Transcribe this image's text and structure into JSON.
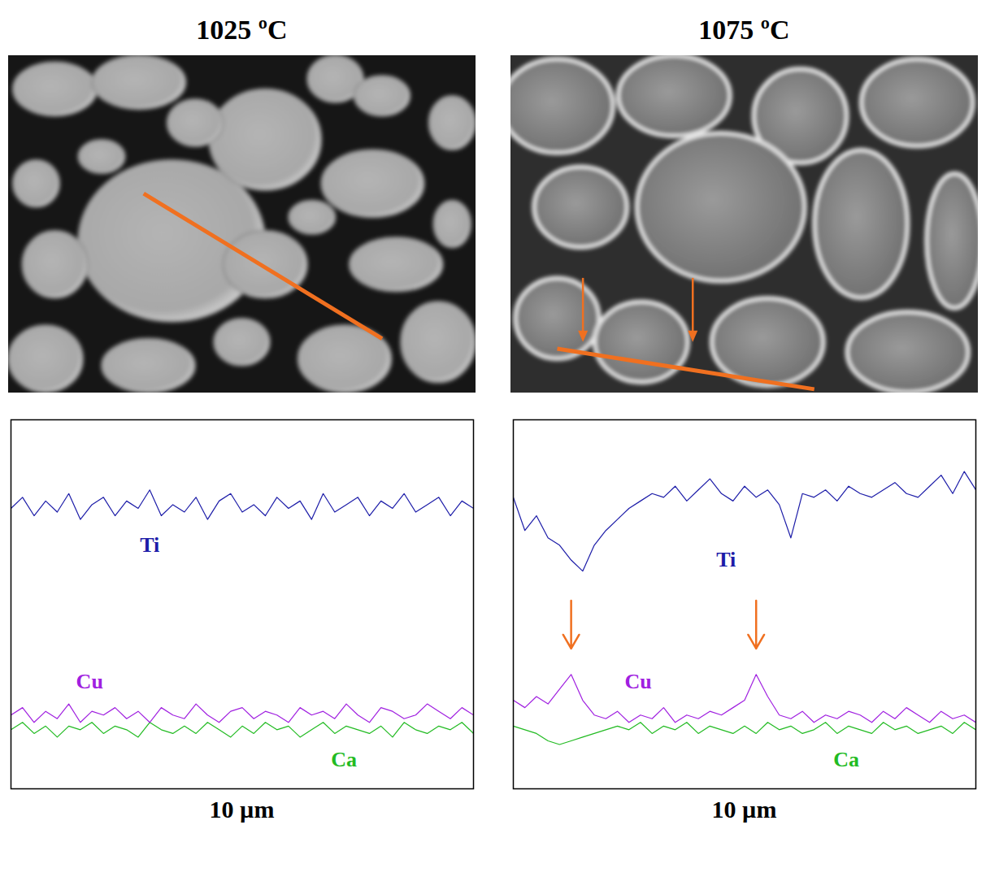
{
  "chart_data": [
    {
      "type": "line",
      "title": "1025 ºC",
      "x_label": "10 µm",
      "tick_labels": false,
      "xlim": [
        0,
        100
      ],
      "ylim": [
        0,
        100
      ],
      "xticks": [],
      "yticks": [],
      "x": [
        0,
        2.5,
        5,
        7.5,
        10,
        12.5,
        15,
        17.5,
        20,
        22.5,
        25,
        27.5,
        30,
        32.5,
        35,
        37.5,
        40,
        42.5,
        45,
        47.5,
        50,
        52.5,
        55,
        57.5,
        60,
        62.5,
        65,
        67.5,
        70,
        72.5,
        75,
        77.5,
        80,
        82.5,
        85,
        87.5,
        90,
        92.5,
        95,
        97.5,
        100
      ],
      "series": [
        {
          "name": "Ti",
          "color": "#1c1ca8",
          "values": [
            76,
            79,
            74,
            78,
            75,
            80,
            73,
            77,
            79,
            74,
            78,
            76,
            81,
            74,
            77,
            75,
            79,
            73,
            78,
            80,
            75,
            77,
            74,
            79,
            76,
            78,
            73,
            80,
            75,
            77,
            79,
            74,
            78,
            76,
            80,
            75,
            77,
            79,
            74,
            78,
            76
          ]
        },
        {
          "name": "Cu",
          "color": "#a020e0",
          "values": [
            20,
            22,
            18,
            21,
            19,
            23,
            18,
            21,
            20,
            22,
            19,
            21,
            18,
            22,
            20,
            19,
            23,
            20,
            18,
            21,
            22,
            19,
            21,
            20,
            18,
            22,
            20,
            21,
            19,
            23,
            20,
            18,
            22,
            21,
            19,
            20,
            23,
            21,
            19,
            22,
            20
          ]
        },
        {
          "name": "Ca",
          "color": "#22bb22",
          "values": [
            16,
            18,
            15,
            17,
            14,
            17,
            16,
            18,
            15,
            17,
            16,
            14,
            18,
            16,
            15,
            17,
            15,
            18,
            16,
            14,
            17,
            15,
            18,
            16,
            17,
            14,
            16,
            18,
            15,
            17,
            16,
            15,
            17,
            14,
            18,
            16,
            15,
            17,
            16,
            18,
            15
          ]
        }
      ]
    },
    {
      "type": "line",
      "title": "1075 ºC",
      "x_label": "10 µm",
      "tick_labels": false,
      "xlim": [
        0,
        100
      ],
      "ylim": [
        0,
        100
      ],
      "xticks": [],
      "yticks": [],
      "x": [
        0,
        2.5,
        5,
        7.5,
        10,
        12.5,
        15,
        17.5,
        20,
        22.5,
        25,
        27.5,
        30,
        32.5,
        35,
        37.5,
        40,
        42.5,
        45,
        47.5,
        50,
        52.5,
        55,
        57.5,
        60,
        62.5,
        65,
        67.5,
        70,
        72.5,
        75,
        77.5,
        80,
        82.5,
        85,
        87.5,
        90,
        92.5,
        95,
        97.5,
        100
      ],
      "arrows": [
        12.5,
        52.5
      ],
      "series": [
        {
          "name": "Ti",
          "color": "#1c1ca8",
          "values": [
            79,
            70,
            74,
            68,
            66,
            62,
            59,
            66,
            70,
            73,
            76,
            78,
            80,
            79,
            82,
            78,
            81,
            84,
            80,
            78,
            82,
            79,
            81,
            77,
            68,
            80,
            79,
            81,
            78,
            82,
            80,
            79,
            81,
            83,
            80,
            79,
            82,
            85,
            80,
            86,
            81
          ]
        },
        {
          "name": "Cu",
          "color": "#a020e0",
          "values": [
            24,
            22,
            25,
            23,
            27,
            31,
            24,
            20,
            19,
            21,
            18,
            20,
            19,
            22,
            18,
            20,
            19,
            21,
            20,
            22,
            24,
            31,
            25,
            20,
            19,
            21,
            18,
            20,
            19,
            21,
            20,
            18,
            21,
            19,
            22,
            20,
            18,
            21,
            19,
            20,
            18
          ]
        },
        {
          "name": "Ca",
          "color": "#22bb22",
          "values": [
            17,
            16,
            15,
            13,
            12,
            13,
            14,
            15,
            16,
            17,
            16,
            18,
            15,
            17,
            16,
            18,
            15,
            17,
            16,
            15,
            17,
            15,
            18,
            16,
            17,
            15,
            16,
            18,
            15,
            17,
            16,
            15,
            18,
            16,
            17,
            15,
            16,
            17,
            15,
            18,
            16
          ]
        }
      ]
    }
  ]
}
